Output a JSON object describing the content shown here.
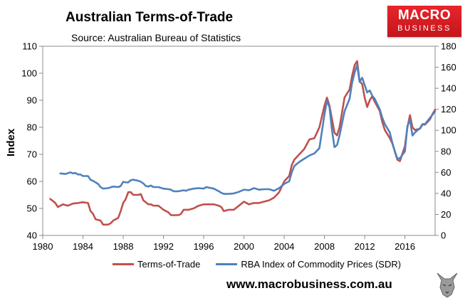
{
  "header": {
    "title": "Australian Terms-of-Trade",
    "subtitle": "Source: Australian Bureau of Statistics"
  },
  "logo": {
    "line1": "MACRO",
    "line2": "BUSINESS"
  },
  "footer": {
    "website": "www.macrobusiness.com.au"
  },
  "colors": {
    "terms_of_trade": "#c0504d",
    "rba_index": "#4f81bd"
  },
  "icons": {
    "logo": "macrobusiness-logo",
    "wolf": "wolf-icon"
  },
  "chart_data": {
    "type": "line",
    "ylabel": "Index",
    "xlim": [
      1980,
      2019
    ],
    "ylim_left": [
      40,
      110
    ],
    "ylim_right": [
      0,
      180
    ],
    "x_ticks": [
      1980,
      1984,
      1988,
      1992,
      1996,
      2000,
      2004,
      2008,
      2012,
      2016
    ],
    "y_ticks_left": [
      40,
      50,
      60,
      70,
      80,
      90,
      100,
      110
    ],
    "y_ticks_right": [
      0,
      20,
      40,
      60,
      80,
      100,
      120,
      140,
      160,
      180
    ],
    "legend_position": "bottom",
    "grid": false,
    "series": [
      {
        "name": "Terms-of-Trade",
        "axis": "left",
        "points": [
          [
            1980.75,
            53.5
          ],
          [
            1981.25,
            52.0
          ],
          [
            1981.5,
            50.5
          ],
          [
            1982.0,
            51.5
          ],
          [
            1982.5,
            51.0
          ],
          [
            1983.0,
            51.8
          ],
          [
            1983.5,
            52.0
          ],
          [
            1984.0,
            52.3
          ],
          [
            1984.5,
            52.0
          ],
          [
            1984.75,
            49.0
          ],
          [
            1985.0,
            48.0
          ],
          [
            1985.25,
            46.0
          ],
          [
            1985.75,
            45.5
          ],
          [
            1986.0,
            44.0
          ],
          [
            1986.5,
            44.0
          ],
          [
            1986.75,
            44.5
          ],
          [
            1987.0,
            45.5
          ],
          [
            1987.5,
            46.5
          ],
          [
            1987.75,
            49.0
          ],
          [
            1988.0,
            52.0
          ],
          [
            1988.25,
            53.5
          ],
          [
            1988.5,
            56.0
          ],
          [
            1988.75,
            56.0
          ],
          [
            1989.0,
            55.0
          ],
          [
            1989.5,
            55.0
          ],
          [
            1989.75,
            55.3
          ],
          [
            1990.0,
            53.0
          ],
          [
            1990.5,
            51.5
          ],
          [
            1990.75,
            51.5
          ],
          [
            1991.0,
            51.0
          ],
          [
            1991.5,
            51.0
          ],
          [
            1992.0,
            49.5
          ],
          [
            1992.5,
            48.5
          ],
          [
            1992.75,
            47.5
          ],
          [
            1993.0,
            47.5
          ],
          [
            1993.5,
            47.5
          ],
          [
            1993.75,
            48.0
          ],
          [
            1994.0,
            49.5
          ],
          [
            1994.5,
            49.5
          ],
          [
            1995.0,
            50.0
          ],
          [
            1995.5,
            51.0
          ],
          [
            1996.0,
            51.5
          ],
          [
            1996.5,
            51.5
          ],
          [
            1997.0,
            51.5
          ],
          [
            1997.5,
            51.0
          ],
          [
            1997.75,
            50.5
          ],
          [
            1998.0,
            49.0
          ],
          [
            1998.5,
            49.5
          ],
          [
            1999.0,
            49.5
          ],
          [
            1999.5,
            51.0
          ],
          [
            2000.0,
            52.5
          ],
          [
            2000.5,
            51.5
          ],
          [
            2001.0,
            52.0
          ],
          [
            2001.5,
            52.0
          ],
          [
            2002.0,
            52.5
          ],
          [
            2002.5,
            53.0
          ],
          [
            2003.0,
            54.0
          ],
          [
            2003.5,
            56.0
          ],
          [
            2004.0,
            60.0
          ],
          [
            2004.5,
            62.0
          ],
          [
            2004.75,
            66.0
          ],
          [
            2005.0,
            68.0
          ],
          [
            2005.5,
            70.0
          ],
          [
            2006.0,
            72.0
          ],
          [
            2006.5,
            75.5
          ],
          [
            2007.0,
            76.0
          ],
          [
            2007.5,
            80.0
          ],
          [
            2008.0,
            88.0
          ],
          [
            2008.25,
            91.0
          ],
          [
            2008.5,
            88.0
          ],
          [
            2008.75,
            83.0
          ],
          [
            2009.0,
            78.0
          ],
          [
            2009.25,
            77.0
          ],
          [
            2009.5,
            80.0
          ],
          [
            2010.0,
            91.0
          ],
          [
            2010.5,
            94.0
          ],
          [
            2010.75,
            99.0
          ],
          [
            2011.0,
            103.0
          ],
          [
            2011.25,
            104.5
          ],
          [
            2011.5,
            97.0
          ],
          [
            2011.75,
            96.0
          ],
          [
            2012.0,
            91.0
          ],
          [
            2012.25,
            87.5
          ],
          [
            2012.5,
            90.0
          ],
          [
            2012.75,
            91.5
          ],
          [
            2013.0,
            89.5
          ],
          [
            2013.5,
            86.0
          ],
          [
            2013.75,
            82.0
          ],
          [
            2014.0,
            79.0
          ],
          [
            2014.5,
            76.0
          ],
          [
            2014.75,
            74.0
          ],
          [
            2015.0,
            71.0
          ],
          [
            2015.25,
            68.0
          ],
          [
            2015.5,
            67.5
          ],
          [
            2016.0,
            73.0
          ],
          [
            2016.25,
            80.0
          ],
          [
            2016.5,
            84.5
          ],
          [
            2016.75,
            80.0
          ],
          [
            2017.0,
            79.0
          ],
          [
            2017.5,
            79.5
          ],
          [
            2017.75,
            81.0
          ],
          [
            2018.0,
            81.0
          ],
          [
            2018.5,
            83.0
          ],
          [
            2018.75,
            85.0
          ],
          [
            2019.0,
            86.5
          ]
        ]
      },
      {
        "name": "RBA Index of Commodity Prices (SDR)",
        "axis": "right",
        "points": [
          [
            1981.75,
            59.0
          ],
          [
            1982.25,
            58.5
          ],
          [
            1982.75,
            60.0
          ],
          [
            1983.0,
            59.0
          ],
          [
            1983.25,
            59.5
          ],
          [
            1983.5,
            58.0
          ],
          [
            1983.75,
            58.0
          ],
          [
            1984.0,
            56.5
          ],
          [
            1984.5,
            56.5
          ],
          [
            1984.75,
            53.0
          ],
          [
            1985.0,
            52.0
          ],
          [
            1985.25,
            50.5
          ],
          [
            1985.5,
            49.0
          ],
          [
            1985.75,
            46.0
          ],
          [
            1986.0,
            44.5
          ],
          [
            1986.5,
            45.0
          ],
          [
            1987.0,
            46.5
          ],
          [
            1987.5,
            46.0
          ],
          [
            1987.75,
            47.0
          ],
          [
            1988.0,
            51.0
          ],
          [
            1988.25,
            50.5
          ],
          [
            1988.5,
            50.5
          ],
          [
            1988.75,
            52.5
          ],
          [
            1989.0,
            53.0
          ],
          [
            1989.5,
            52.0
          ],
          [
            1989.75,
            51.0
          ],
          [
            1990.0,
            49.5
          ],
          [
            1990.25,
            47.0
          ],
          [
            1990.5,
            46.5
          ],
          [
            1990.75,
            47.5
          ],
          [
            1991.0,
            46.0
          ],
          [
            1991.5,
            46.0
          ],
          [
            1992.0,
            44.5
          ],
          [
            1992.5,
            44.0
          ],
          [
            1992.75,
            43.5
          ],
          [
            1993.0,
            42.0
          ],
          [
            1993.5,
            42.0
          ],
          [
            1994.0,
            43.0
          ],
          [
            1994.25,
            42.5
          ],
          [
            1994.5,
            43.5
          ],
          [
            1995.0,
            44.5
          ],
          [
            1995.5,
            45.0
          ],
          [
            1996.0,
            44.5
          ],
          [
            1996.25,
            46.0
          ],
          [
            1996.5,
            45.5
          ],
          [
            1997.0,
            44.5
          ],
          [
            1997.5,
            42.0
          ],
          [
            1997.75,
            40.5
          ],
          [
            1998.0,
            39.5
          ],
          [
            1998.5,
            39.5
          ],
          [
            1999.0,
            40.0
          ],
          [
            1999.5,
            41.5
          ],
          [
            2000.0,
            43.5
          ],
          [
            2000.5,
            43.0
          ],
          [
            2001.0,
            45.0
          ],
          [
            2001.5,
            43.5
          ],
          [
            2002.0,
            44.0
          ],
          [
            2002.5,
            44.0
          ],
          [
            2003.0,
            42.5
          ],
          [
            2003.5,
            45.0
          ],
          [
            2004.0,
            49.0
          ],
          [
            2004.5,
            51.5
          ],
          [
            2004.75,
            60.0
          ],
          [
            2005.0,
            66.0
          ],
          [
            2005.5,
            70.0
          ],
          [
            2006.0,
            73.0
          ],
          [
            2006.5,
            76.0
          ],
          [
            2007.0,
            78.0
          ],
          [
            2007.5,
            83.0
          ],
          [
            2008.0,
            115.0
          ],
          [
            2008.25,
            128.0
          ],
          [
            2008.5,
            122.0
          ],
          [
            2008.75,
            100.0
          ],
          [
            2009.0,
            84.0
          ],
          [
            2009.25,
            86.0
          ],
          [
            2009.5,
            95.0
          ],
          [
            2010.0,
            118.0
          ],
          [
            2010.5,
            130.0
          ],
          [
            2010.75,
            145.0
          ],
          [
            2011.0,
            155.0
          ],
          [
            2011.25,
            162.0
          ],
          [
            2011.5,
            146.0
          ],
          [
            2011.75,
            150.0
          ],
          [
            2012.0,
            143.0
          ],
          [
            2012.25,
            136.0
          ],
          [
            2012.5,
            138.0
          ],
          [
            2012.75,
            133.0
          ],
          [
            2013.0,
            130.0
          ],
          [
            2013.5,
            120.0
          ],
          [
            2013.75,
            112.0
          ],
          [
            2014.0,
            106.0
          ],
          [
            2014.5,
            98.0
          ],
          [
            2014.75,
            88.0
          ],
          [
            2015.0,
            80.0
          ],
          [
            2015.25,
            73.0
          ],
          [
            2015.5,
            73.5
          ],
          [
            2016.0,
            80.0
          ],
          [
            2016.25,
            104.0
          ],
          [
            2016.5,
            110.0
          ],
          [
            2016.75,
            95.0
          ],
          [
            2017.0,
            98.0
          ],
          [
            2017.5,
            102.0
          ],
          [
            2017.75,
            106.0
          ],
          [
            2018.0,
            106.0
          ],
          [
            2018.5,
            112.0
          ],
          [
            2018.75,
            115.0
          ],
          [
            2019.0,
            118.0
          ]
        ]
      }
    ]
  }
}
